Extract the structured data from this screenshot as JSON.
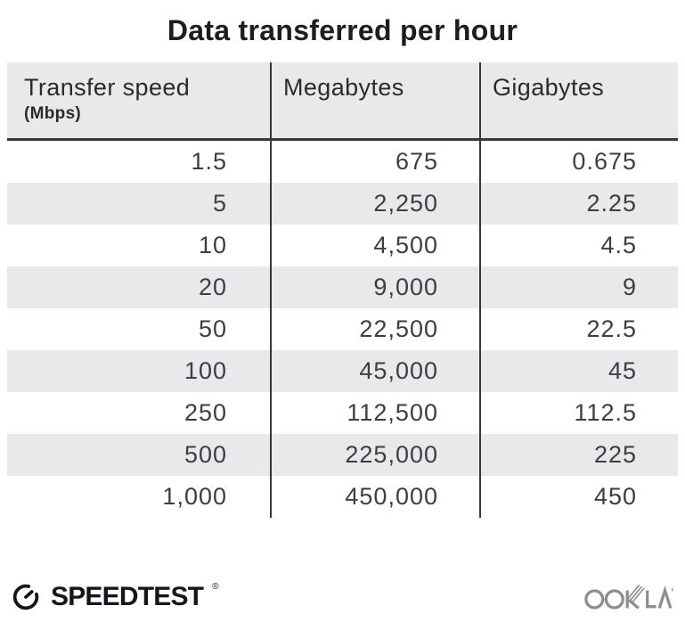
{
  "title": "Data transferred per hour",
  "table": {
    "columns": [
      {
        "label": "Transfer speed",
        "sublabel": "(Mbps)"
      },
      {
        "label": "Megabytes",
        "sublabel": ""
      },
      {
        "label": "Gigabytes",
        "sublabel": ""
      }
    ],
    "rows": [
      [
        "1.5",
        "675",
        "0.675"
      ],
      [
        "5",
        "2,250",
        "2.25"
      ],
      [
        "10",
        "4,500",
        "4.5"
      ],
      [
        "20",
        "9,000",
        "9"
      ],
      [
        "50",
        "22,500",
        "22.5"
      ],
      [
        "100",
        "45,000",
        "45"
      ],
      [
        "250",
        "112,500",
        "112.5"
      ],
      [
        "500",
        "225,000",
        "225"
      ],
      [
        "1,000",
        "450,000",
        "450"
      ]
    ]
  },
  "footer": {
    "speedtest_label": "SPEEDTEST",
    "speedtest_mark": "®",
    "ookla_label": "OOKLA"
  },
  "colors": {
    "header_bg": "#e9e8eb",
    "stripe_bg": "#e9e8eb",
    "divider": "#38383b",
    "title_text": "#1d1d20",
    "body_text": "#3e3e42",
    "logo_dark": "#16151b",
    "ookla_gray": "#8d8d90"
  },
  "chart_data": {
    "type": "table",
    "title": "Data transferred per hour",
    "columns": [
      "Transfer speed (Mbps)",
      "Megabytes",
      "Gigabytes"
    ],
    "speeds_mbps": [
      1.5,
      5,
      10,
      20,
      50,
      100,
      250,
      500,
      1000
    ],
    "megabytes": [
      675,
      2250,
      4500,
      9000,
      22500,
      45000,
      112500,
      225000,
      450000
    ],
    "gigabytes": [
      0.675,
      2.25,
      4.5,
      9,
      22.5,
      45,
      112.5,
      225,
      450
    ]
  }
}
